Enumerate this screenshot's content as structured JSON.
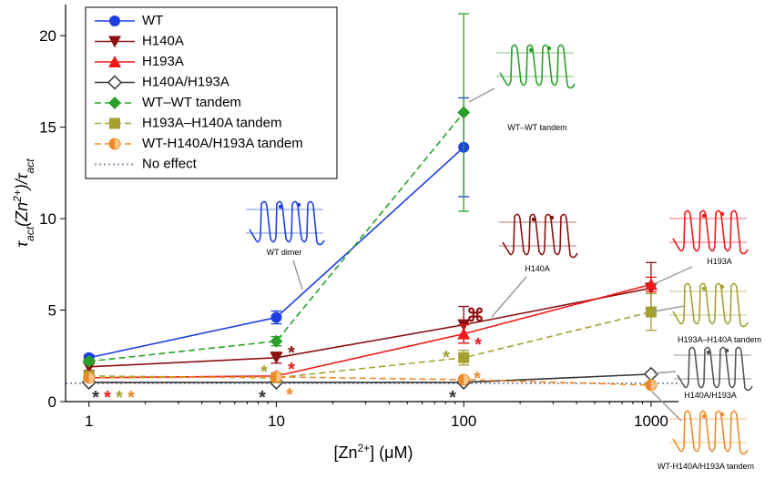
{
  "chart_data": {
    "type": "line",
    "log_x": true,
    "xlabel": [
      "[Zn",
      "2+",
      "] (μM)"
    ],
    "ylabel": [
      "τ",
      "act",
      "(Zn",
      "2+",
      ")/τ",
      "act"
    ],
    "x": [
      1,
      10,
      100,
      1000
    ],
    "xlim": [
      0.75,
      1400
    ],
    "xticks": [
      1,
      10,
      100,
      1000
    ],
    "ylim": [
      0,
      21.7
    ],
    "yticks": [
      0,
      5,
      10,
      15,
      20
    ],
    "series": [
      {
        "name": "WT",
        "color": "#1f3fe0",
        "marker": "circle",
        "dashed": false,
        "values": [
          2.4,
          4.6,
          13.9,
          null
        ],
        "errors": [
          0.15,
          0.35,
          2.7,
          null
        ]
      },
      {
        "name": "H140A",
        "color": "#8b1010",
        "marker": "triangle-down",
        "dashed": false,
        "values": [
          1.9,
          2.4,
          4.2,
          6.2
        ],
        "errors": [
          0.2,
          0.3,
          1.0,
          1.4
        ]
      },
      {
        "name": "H193A",
        "color": "#f01818",
        "marker": "triangle-up",
        "dashed": false,
        "values": [
          1.3,
          1.4,
          3.7,
          6.4
        ],
        "errors": [
          0.1,
          0.1,
          0.5,
          0.4
        ]
      },
      {
        "name": "H140A/H193A",
        "color": "#333333",
        "marker": "diamond-open",
        "dashed": false,
        "values": [
          1.05,
          1.05,
          1.05,
          1.5
        ],
        "errors": [
          0.05,
          0.05,
          0.05,
          0.1
        ]
      },
      {
        "name": "WT–WT tandem",
        "color": "#2aa02a",
        "marker": "diamond",
        "dashed": true,
        "values": [
          2.2,
          3.3,
          15.8,
          null
        ],
        "errors": [
          0.15,
          0.25,
          5.4,
          null
        ]
      },
      {
        "name": "H193A–H140A tandem",
        "color": "#a5a030",
        "marker": "square",
        "dashed": true,
        "values": [
          1.4,
          1.3,
          2.4,
          4.9
        ],
        "errors": [
          0.1,
          0.1,
          0.4,
          1.0
        ]
      },
      {
        "name": "WT-H140A/H193A tandem",
        "color": "#ee8a2a",
        "marker": "half-circle",
        "dashed": true,
        "values": [
          1.3,
          1.35,
          1.2,
          0.9
        ],
        "errors": [
          0.1,
          0.1,
          0.1,
          0.1
        ]
      }
    ],
    "reference_line": {
      "name": "No effect",
      "value": 1,
      "color": "#8a96b0"
    },
    "annotations": [
      {
        "text": "*",
        "color": "#333333"
      },
      {
        "text": "*",
        "color": "#f01818"
      },
      {
        "text": "*",
        "color": "#a5a030"
      },
      {
        "text": "*",
        "color": "#ee8a2a"
      },
      {
        "text": "*",
        "color": "#8b1010"
      },
      {
        "text": "*",
        "color": "#f01818"
      },
      {
        "text": "*",
        "color": "#a5a030"
      },
      {
        "text": "*",
        "color": "#333333"
      },
      {
        "text": "*",
        "color": "#ee8a2a"
      },
      {
        "text": "⌘",
        "color": "#8b1010"
      },
      {
        "text": "*",
        "color": "#f01818"
      },
      {
        "text": "*",
        "color": "#a5a030"
      },
      {
        "text": "*",
        "color": "#ee8a2a"
      },
      {
        "text": "*",
        "color": "#333333"
      }
    ],
    "insets": [
      {
        "label": "WT dimer",
        "color": "#1f3fe0"
      },
      {
        "label": "WT–WT tandem",
        "color": "#2aa02a"
      },
      {
        "label": "H140A",
        "color": "#8b1010"
      },
      {
        "label": "H193A",
        "color": "#f01818"
      },
      {
        "label": "H193A–H140A tandem",
        "color": "#a5a030"
      },
      {
        "label": "H140A/H193A",
        "color": "#555555"
      },
      {
        "label": "WT-H140A/H193A tandem",
        "color": "#ee8a2a"
      }
    ]
  }
}
